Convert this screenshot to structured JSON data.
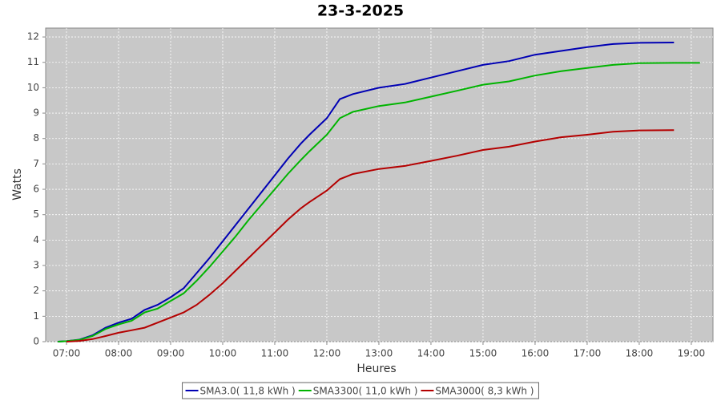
{
  "chart_data": {
    "type": "line",
    "title": "23-3-2025",
    "x_label": "Heures",
    "y_label": "Watts",
    "x": [
      "06:50",
      "07:00",
      "07:15",
      "07:30",
      "07:45",
      "08:00",
      "08:15",
      "08:30",
      "08:45",
      "09:00",
      "09:15",
      "09:30",
      "09:45",
      "10:00",
      "10:15",
      "10:30",
      "10:45",
      "11:00",
      "11:15",
      "11:30",
      "11:40",
      "12:00",
      "12:15",
      "12:30",
      "13:00",
      "13:30",
      "14:00",
      "14:30",
      "15:00",
      "15:30",
      "16:00",
      "16:30",
      "17:00",
      "17:30",
      "18:00",
      "18:40",
      "19:10"
    ],
    "series": [
      {
        "name": "SMA3.0( 11,8 kWh )",
        "color": "#0000b4",
        "values": [
          0,
          0.02,
          0.08,
          0.25,
          0.55,
          0.75,
          0.9,
          1.25,
          1.45,
          1.75,
          2.1,
          2.7,
          3.3,
          3.95,
          4.6,
          5.25,
          5.9,
          6.55,
          7.2,
          7.8,
          8.15,
          8.8,
          9.55,
          9.75,
          10.0,
          10.15,
          10.4,
          10.65,
          10.9,
          11.05,
          11.3,
          11.45,
          11.6,
          11.72,
          11.77,
          11.78,
          null
        ]
      },
      {
        "name": "SMA3300( 11,0 kWh )",
        "color": "#00b400",
        "values": [
          0,
          0.02,
          0.07,
          0.22,
          0.5,
          0.68,
          0.82,
          1.15,
          1.3,
          1.6,
          1.9,
          2.4,
          2.95,
          3.55,
          4.15,
          4.8,
          5.4,
          6.0,
          6.6,
          7.15,
          7.5,
          8.15,
          8.8,
          9.05,
          9.28,
          9.42,
          9.65,
          9.88,
          10.12,
          10.25,
          10.48,
          10.65,
          10.78,
          10.9,
          10.97,
          10.98,
          10.98
        ]
      },
      {
        "name": "SMA3000( 8,3 kWh )",
        "color": "#b40000",
        "values": [
          null,
          0,
          0.03,
          0.1,
          0.22,
          0.35,
          0.45,
          0.55,
          0.75,
          0.95,
          1.15,
          1.45,
          1.85,
          2.3,
          2.8,
          3.3,
          3.8,
          4.3,
          4.8,
          5.25,
          5.5,
          5.95,
          6.4,
          6.6,
          6.8,
          6.92,
          7.12,
          7.32,
          7.55,
          7.68,
          7.88,
          8.05,
          8.15,
          8.27,
          8.32,
          8.33,
          null
        ]
      }
    ],
    "xlim": [
      "06:36",
      "19:25"
    ],
    "xticks": [
      "07:00",
      "08:00",
      "09:00",
      "10:00",
      "11:00",
      "12:00",
      "13:00",
      "14:00",
      "15:00",
      "16:00",
      "17:00",
      "18:00",
      "19:00"
    ],
    "ylim": [
      0,
      12.35
    ],
    "yticks": [
      0,
      1,
      2,
      3,
      4,
      5,
      6,
      7,
      8,
      9,
      10,
      11,
      12
    ],
    "grid": true,
    "legend": "bottom"
  }
}
